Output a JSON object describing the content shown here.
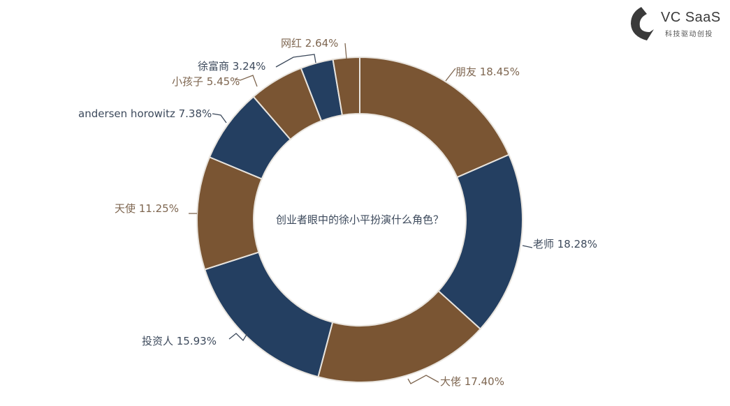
{
  "logo": {
    "title": "VC SaaS",
    "subtitle": "科技驱动创投",
    "icon": "vc-saas-logo-icon"
  },
  "colors": {
    "brown": "#7a5533",
    "navy": "#243f61",
    "brown_label": "#7e6650",
    "navy_label": "#3d4a5c",
    "separator": "#e8e4de"
  },
  "chart_data": {
    "type": "pie",
    "variant": "donut",
    "title": "创业者眼中的徐小平扮演什么角色？",
    "unit": "%",
    "categories": [
      "朋友",
      "老师",
      "大佬",
      "投资人",
      "天使",
      "andersen horowitz",
      "小孩子",
      "徐富商",
      "网红"
    ],
    "values": [
      18.45,
      18.28,
      17.4,
      15.93,
      11.25,
      7.38,
      5.45,
      3.24,
      2.64
    ],
    "colors": [
      "#7a5533",
      "#243f61",
      "#7a5533",
      "#243f61",
      "#7a5533",
      "#243f61",
      "#7a5533",
      "#243f61",
      "#7a5533"
    ],
    "start_angle": "top (12 o'clock), clockwise",
    "legend": "none (leader-line labels)"
  },
  "labels": [
    {
      "text": "朋友 18.45%"
    },
    {
      "text": "老师 18.28%"
    },
    {
      "text": "大佬 17.40%"
    },
    {
      "text": "投资人 15.93%"
    },
    {
      "text": "天使 11.25%"
    },
    {
      "text": "andersen horowitz 7.38%"
    },
    {
      "text": "小孩子 5.45%"
    },
    {
      "text": "徐富商 3.24%"
    },
    {
      "text": "网红 2.64%"
    }
  ]
}
